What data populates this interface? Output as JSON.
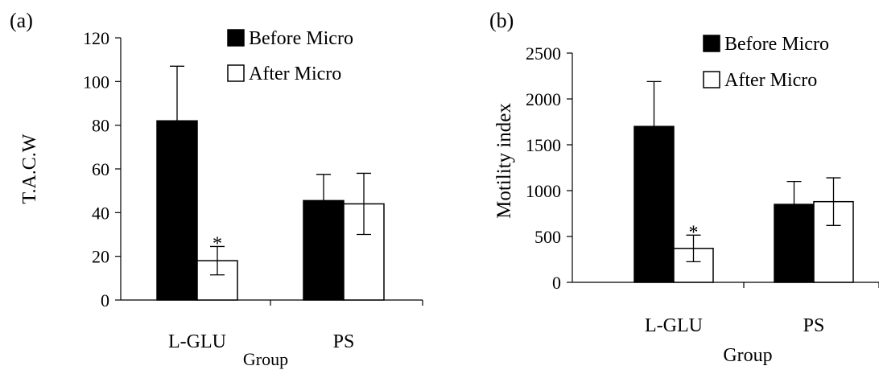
{
  "chart_data": [
    {
      "panel_label": "(a)",
      "type": "bar",
      "ylabel": "T.A.C.W",
      "xlabel": "Group",
      "ylim": [
        0,
        120
      ],
      "yticks": [
        0,
        20,
        40,
        60,
        80,
        100,
        120
      ],
      "categories": [
        "L-GLU",
        "PS"
      ],
      "legend_position": "top-right",
      "series": [
        {
          "name": "Before Micro",
          "values": [
            82,
            45.5
          ],
          "errors": [
            25,
            12
          ],
          "color": "#000000"
        },
        {
          "name": "After Micro",
          "values": [
            18,
            44
          ],
          "errors": [
            6.5,
            14
          ],
          "color": "#ffffff"
        }
      ],
      "annotations": [
        {
          "text": "*",
          "category": "L-GLU",
          "series": "After Micro"
        }
      ]
    },
    {
      "panel_label": "(b)",
      "type": "bar",
      "ylabel": "Motility index",
      "xlabel": "Group",
      "ylim": [
        0,
        2500
      ],
      "yticks": [
        0,
        500,
        1000,
        1500,
        2000,
        2500
      ],
      "categories": [
        "L-GLU",
        "PS"
      ],
      "legend_position": "top-right",
      "series": [
        {
          "name": "Before Micro",
          "values": [
            1700,
            850
          ],
          "errors": [
            490,
            250
          ],
          "color": "#000000"
        },
        {
          "name": "After Micro",
          "values": [
            370,
            880
          ],
          "errors": [
            145,
            260
          ],
          "color": "#ffffff"
        }
      ],
      "annotations": [
        {
          "text": "*",
          "category": "L-GLU",
          "series": "After Micro"
        }
      ]
    }
  ]
}
